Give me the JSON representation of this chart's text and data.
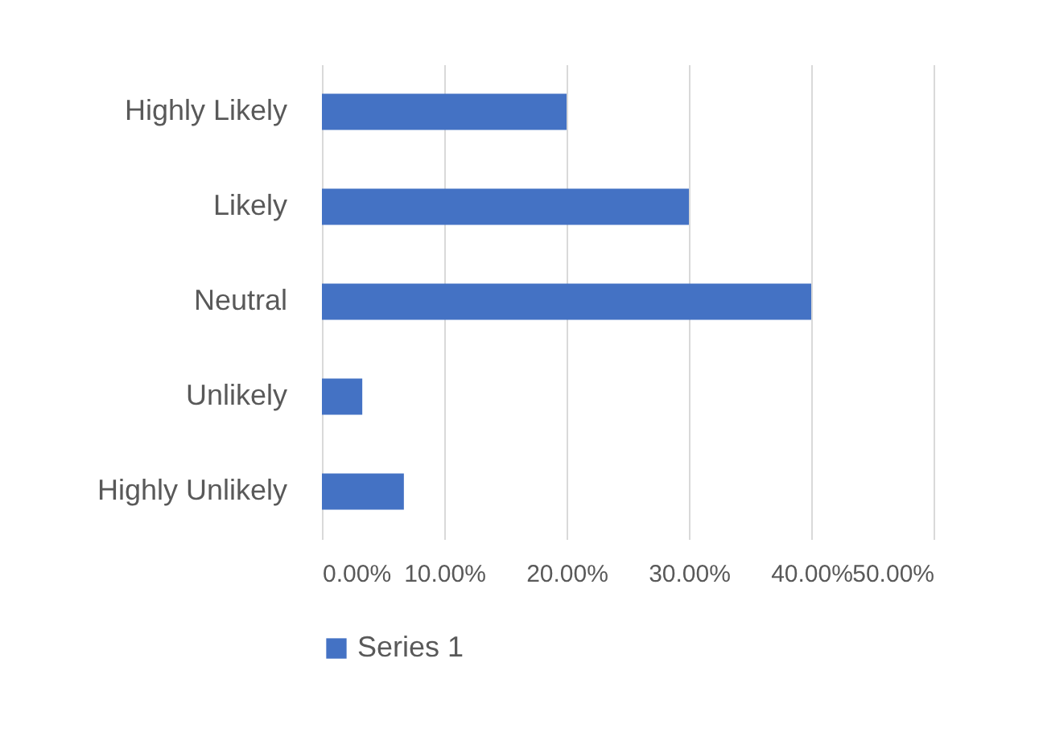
{
  "chart_data": {
    "type": "bar",
    "orientation": "horizontal",
    "categories": [
      "Highly Likely",
      "Likely",
      "Neutral",
      "Unlikely",
      "Highly Unlikely"
    ],
    "series": [
      {
        "name": "Series 1",
        "color": "#4472c4",
        "values": [
          20,
          30,
          40,
          3.3,
          6.7
        ]
      }
    ],
    "xlim": [
      0,
      50
    ],
    "xticks": [
      {
        "value": 0,
        "label": "0.00%"
      },
      {
        "value": 10,
        "label": "10.00%"
      },
      {
        "value": 20,
        "label": "20.00%"
      },
      {
        "value": 30,
        "label": "30.00%"
      },
      {
        "value": 40,
        "label": "40.00%"
      },
      {
        "value": 50,
        "label": "50.00%"
      }
    ],
    "grid": "x",
    "legend": "bottom"
  }
}
